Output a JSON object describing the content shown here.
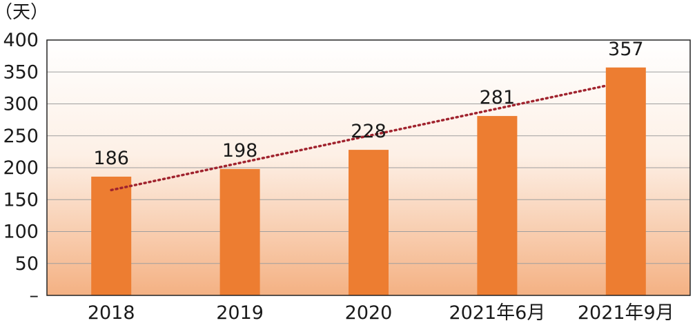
{
  "chart_data": {
    "type": "bar",
    "unit_label": "（天）",
    "categories": [
      "2018",
      "2019",
      "2020",
      "2021年6月",
      "2021年9月"
    ],
    "values": [
      186,
      198,
      228,
      281,
      357
    ],
    "y_tick_labels": [
      "–",
      "50",
      "100",
      "150",
      "200",
      "250",
      "300",
      "350",
      "400"
    ],
    "ylim": [
      0,
      400
    ],
    "grid": true,
    "trendline": true,
    "colors": {
      "bar": "#ed7d31",
      "trendline": "#a0232e",
      "grid": "#9e9e9e",
      "axis": "#222222",
      "plot_bg_top": "#ffffff",
      "plot_bg_bottom": "#f4b183"
    }
  }
}
